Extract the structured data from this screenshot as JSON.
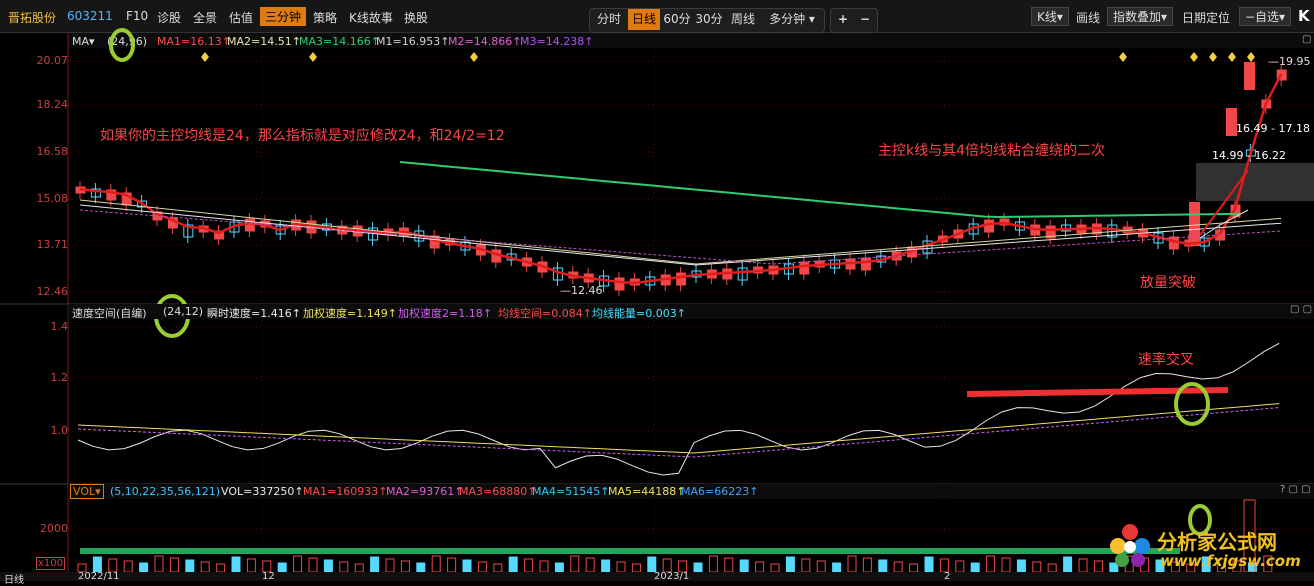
{
  "toolbar": {
    "stock_name": "晋拓股份",
    "stock_code": "603211",
    "left_items": [
      "F10",
      "诊股",
      "全景",
      "估值",
      "三分钟",
      "策略",
      "K线故事",
      "换股"
    ],
    "period_tabs": [
      "分时",
      "日线",
      "60分",
      "30分",
      "周线",
      "多分钟"
    ],
    "active_period": "日线",
    "zoom_in": "+",
    "zoom_out": "−",
    "right_items": [
      "K线",
      "画线",
      "指数叠加",
      "日期定位",
      "自选"
    ],
    "k_icon": "K"
  },
  "main_panel": {
    "legend_prefix": "MA",
    "legend_param": "(24,96)",
    "legend": [
      {
        "text": "MA1=16.13↑",
        "color": "#ff4a4a"
      },
      {
        "text": "MA2=14.51↑",
        "color": "#e6e6b0"
      },
      {
        "text": "MA3=14.166↑",
        "color": "#2ecc71"
      },
      {
        "text": "M1=16.953↑",
        "color": "#d0d0d0"
      },
      {
        "text": "M2=14.866↑",
        "color": "#e060d0"
      },
      {
        "text": "M3=14.238↑",
        "color": "#b050ff"
      }
    ],
    "y_ticks": [
      "20.07",
      "18.24",
      "16.58",
      "15.08",
      "13.71",
      "12.46"
    ],
    "annotation_1": "如果你的主控均线是24，那么指标就是对应修改24，和24/2=12",
    "annotation_2": "主控k线与其4倍均线粘合缠绕的二次",
    "annotation_3": "放量突破",
    "price_high_label": "19.95",
    "price_low_label": "12.46",
    "range_label_1": "16.49 - 17.18",
    "range_label_2": "14.99 - 16.22"
  },
  "speed_panel": {
    "title": "速度空间(自编)",
    "param": "(24,12)",
    "legend": [
      {
        "text": "瞬时速度=1.416↑",
        "color": "#e8e8e8"
      },
      {
        "text": "加权速度=1.149↑",
        "color": "#f0e060"
      },
      {
        "text": "加权速度2=1.18↑",
        "color": "#d060f0"
      },
      {
        "text": "均线空间=0.084↑",
        "color": "#ff4a4a"
      },
      {
        "text": "均线能量=0.003↑",
        "color": "#40e0ff"
      }
    ],
    "y_ticks": [
      "1.4",
      "1.2",
      "1.0"
    ],
    "annotation": "速率交叉"
  },
  "vol_panel": {
    "label": "VOL",
    "param": "(5,10,22,35,56,121)",
    "legend": [
      {
        "text": "VOL=337250↑",
        "color": "#e8e8e8"
      },
      {
        "text": "MA1=160933↑",
        "color": "#ff4a4a"
      },
      {
        "text": "MA2=93761↑",
        "color": "#e060d0"
      },
      {
        "text": "MA3=68880↑",
        "color": "#ff4a4a"
      },
      {
        "text": "MA4=51545↑",
        "color": "#40c0ff"
      },
      {
        "text": "MA5=44188↑",
        "color": "#f0e060"
      },
      {
        "text": "MA6=66223↑",
        "color": "#40a0ff"
      }
    ],
    "y_tick": "2000",
    "unit": "x100"
  },
  "date_axis": {
    "period_label": "日线",
    "dates": [
      "2022/11",
      "12",
      "2023/1",
      "2"
    ]
  },
  "watermark": {
    "brand": "分析家公式网",
    "url": "www.fxjgsw.com"
  }
}
